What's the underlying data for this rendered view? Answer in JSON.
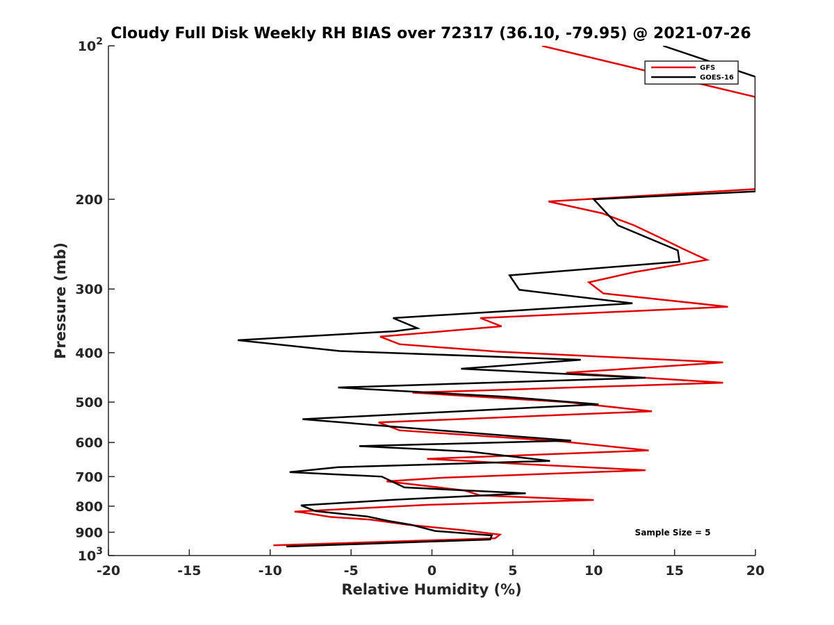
{
  "chart_data": {
    "type": "line",
    "title": "Cloudy Full Disk Weekly RH BIAS over 72317 (36.10, -79.95) @ 2021-07-26",
    "xlabel": "Relative Humidity (%)",
    "ylabel": "Pressure (mb)",
    "xlim": [
      -20,
      20
    ],
    "ylim": [
      100,
      1000
    ],
    "yscale": "log",
    "y_reversed": true,
    "grid": false,
    "legend_position": "top-right",
    "x_ticks": [
      "-20",
      "-15",
      "-10",
      "-5",
      "0",
      "5",
      "10",
      "15",
      "20"
    ],
    "y_ticks": [
      {
        "value": 100,
        "base": "10",
        "exp": "2"
      },
      {
        "value": 200,
        "label": "200"
      },
      {
        "value": 300,
        "label": "300"
      },
      {
        "value": 400,
        "label": "400"
      },
      {
        "value": 500,
        "label": "500"
      },
      {
        "value": 600,
        "label": "600"
      },
      {
        "value": 700,
        "label": "700"
      },
      {
        "value": 800,
        "label": "800"
      },
      {
        "value": 900,
        "label": "900"
      },
      {
        "value": 1000,
        "base": "10",
        "exp": "3"
      }
    ],
    "annotation": "Sample Size = 5",
    "series": [
      {
        "name": "GFS",
        "color": "#e00000",
        "points": [
          [
            6.8,
            100
          ],
          [
            20,
            126
          ],
          [
            20,
            191
          ],
          [
            7.2,
            202
          ],
          [
            10.5,
            213
          ],
          [
            12.5,
            225
          ],
          [
            14,
            237
          ],
          [
            15.5,
            250
          ],
          [
            17,
            263
          ],
          [
            12.5,
            278
          ],
          [
            9.7,
            291
          ],
          [
            10.6,
            306
          ],
          [
            18.3,
            325
          ],
          [
            3,
            342
          ],
          [
            4.3,
            355
          ],
          [
            -3.2,
            372
          ],
          [
            -2,
            385
          ],
          [
            4,
            398
          ],
          [
            18,
            418
          ],
          [
            8.3,
            438
          ],
          [
            18,
            458
          ],
          [
            -1.2,
            479
          ],
          [
            8.3,
            500
          ],
          [
            13.6,
            521
          ],
          [
            -3.3,
            548
          ],
          [
            -2,
            568
          ],
          [
            8,
            597
          ],
          [
            13.4,
            622
          ],
          [
            -0.3,
            646
          ],
          [
            5,
            660
          ],
          [
            13.2,
            680
          ],
          [
            0.5,
            704
          ],
          [
            -2.8,
            715
          ],
          [
            2,
            745
          ],
          [
            3,
            762
          ],
          [
            10,
            778
          ],
          [
            -0.2,
            795
          ],
          [
            -8.5,
            820
          ],
          [
            -8,
            823
          ],
          [
            -6.3,
            840
          ],
          [
            -3.8,
            850
          ],
          [
            -1.5,
            870
          ],
          [
            2,
            892
          ],
          [
            4.2,
            910
          ],
          [
            3.9,
            925
          ],
          [
            -9.8,
            955
          ]
        ]
      },
      {
        "name": "GOES-16",
        "color": "#000000",
        "points": [
          [
            14.3,
            100
          ],
          [
            20,
            115
          ],
          [
            20,
            193
          ],
          [
            10,
            200
          ],
          [
            10.8,
            213
          ],
          [
            11.5,
            225
          ],
          [
            15.2,
            252
          ],
          [
            15.3,
            265
          ],
          [
            4.8,
            282
          ],
          [
            5.4,
            301
          ],
          [
            12.4,
            320
          ],
          [
            -2.4,
            342
          ],
          [
            -0.9,
            358
          ],
          [
            -2.3,
            363
          ],
          [
            -12,
            378
          ],
          [
            -5.7,
            397
          ],
          [
            9.2,
            413
          ],
          [
            1.8,
            430
          ],
          [
            13.2,
            448
          ],
          [
            -5.8,
            468
          ],
          [
            4.5,
            488
          ],
          [
            10.3,
            505
          ],
          [
            -8,
            540
          ],
          [
            1,
            570
          ],
          [
            8.6,
            595
          ],
          [
            -4.5,
            610
          ],
          [
            2.3,
            625
          ],
          [
            7.3,
            652
          ],
          [
            -5.8,
            671
          ],
          [
            -8.8,
            686
          ],
          [
            -3.1,
            700
          ],
          [
            -1.7,
            735
          ],
          [
            5.8,
            755
          ],
          [
            -2.3,
            777
          ],
          [
            -8.1,
            797
          ],
          [
            -7.2,
            818
          ],
          [
            -4,
            838
          ],
          [
            -2.7,
            855
          ],
          [
            -1.3,
            870
          ],
          [
            0.2,
            895
          ],
          [
            3.7,
            913
          ],
          [
            3.6,
            930
          ],
          [
            -9,
            960
          ]
        ]
      }
    ]
  }
}
